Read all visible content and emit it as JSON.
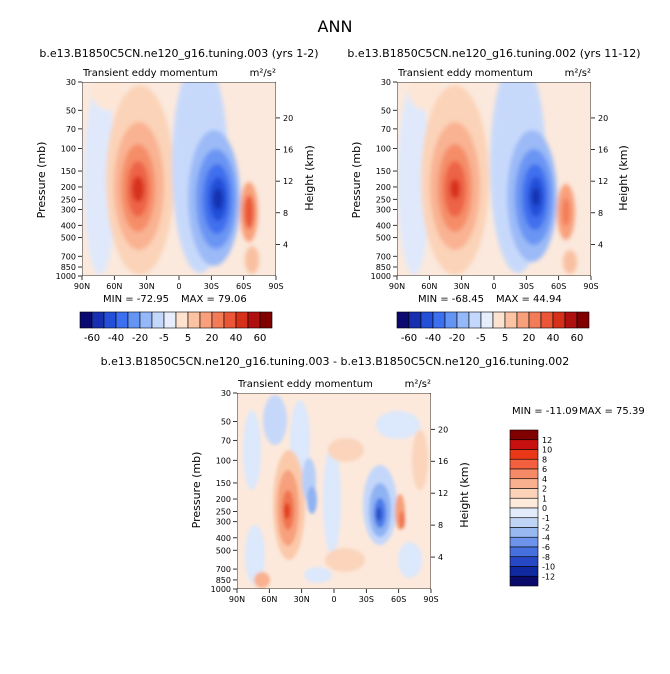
{
  "chart_data": [
    {
      "type": "heatmap",
      "title": "b.e13.B1850C5CN.ne120_g16.tuning.003 (yrs 1-2)",
      "subtitle_left": "Transient eddy momentum",
      "subtitle_right": "m²/s²",
      "ylabel": "Pressure (mb)",
      "ylabel_right": "Height (km)",
      "pressure_ticks": [
        "30",
        "50",
        "70",
        "100",
        "150",
        "200",
        "250",
        "300",
        "400",
        "500",
        "700",
        "850",
        "1000"
      ],
      "height_ticks": [
        "4",
        "8",
        "12",
        "16",
        "20"
      ],
      "lat_ticks": [
        "90N",
        "60N",
        "30N",
        "0",
        "30S",
        "60S",
        "90S"
      ],
      "min_label": "MIN = -72.95",
      "max_label": "MAX = 79.06",
      "color_levels": [
        "-60",
        "-40",
        "-20",
        "-5",
        "5",
        "20",
        "40",
        "60"
      ]
    },
    {
      "type": "heatmap",
      "title": "b.e13.B1850C5CN.ne120_g16.tuning.002 (yrs 11-12)",
      "subtitle_left": "Transient eddy momentum",
      "subtitle_right": "m²/s²",
      "ylabel": "Pressure (mb)",
      "ylabel_right": "Height (km)",
      "pressure_ticks": [
        "30",
        "50",
        "70",
        "100",
        "150",
        "200",
        "250",
        "300",
        "400",
        "500",
        "700",
        "850",
        "1000"
      ],
      "height_ticks": [
        "4",
        "8",
        "12",
        "16",
        "20"
      ],
      "lat_ticks": [
        "90N",
        "60N",
        "30N",
        "0",
        "30S",
        "60S",
        "90S"
      ],
      "min_label": "MIN = -68.45",
      "max_label": "MAX = 44.94",
      "color_levels": [
        "-60",
        "-40",
        "-20",
        "-5",
        "5",
        "20",
        "40",
        "60"
      ]
    },
    {
      "type": "heatmap",
      "title": "b.e13.B1850C5CN.ne120_g16.tuning.003 - b.e13.B1850C5CN.ne120_g16.tuning.002",
      "subtitle_left": "Transient eddy momentum",
      "subtitle_right": "m²/s²",
      "ylabel": "Pressure (mb)",
      "ylabel_right": "Height (km)",
      "pressure_ticks": [
        "30",
        "50",
        "70",
        "100",
        "150",
        "200",
        "250",
        "300",
        "400",
        "500",
        "700",
        "850",
        "1000"
      ],
      "height_ticks": [
        "4",
        "8",
        "12",
        "16",
        "20"
      ],
      "lat_ticks": [
        "90N",
        "60N",
        "30N",
        "0",
        "30S",
        "60S",
        "90S"
      ],
      "min_label": "MIN = -11.09",
      "max_label": "MAX =  75.39",
      "color_levels": [
        "12",
        "10",
        "8",
        "6",
        "4",
        "2",
        "1",
        "0",
        "-1",
        "-2",
        "-4",
        "-6",
        "-8",
        "-10",
        "-12"
      ]
    }
  ],
  "figure": {
    "title": "ANN"
  },
  "colors": {
    "main_scale": [
      "#0a0a70",
      "#1830b0",
      "#2450d8",
      "#3c70f0",
      "#6495f5",
      "#94b8f8",
      "#c4d8fb",
      "#e6eefc",
      "#fde2cf",
      "#fbc2a4",
      "#f8a07c",
      "#f37c58",
      "#ea5636",
      "#d7301a",
      "#b01010",
      "#800000"
    ],
    "diff_scale": [
      "#800000",
      "#c81010",
      "#e83818",
      "#f26040",
      "#f68a66",
      "#f9b08e",
      "#fcd3b8",
      "#fdeadb",
      "#e2ecfb",
      "#c0d4f6",
      "#98b8f1",
      "#6d94ea",
      "#4570dd",
      "#2648c4",
      "#1028a0",
      "#0a0a6a"
    ]
  }
}
